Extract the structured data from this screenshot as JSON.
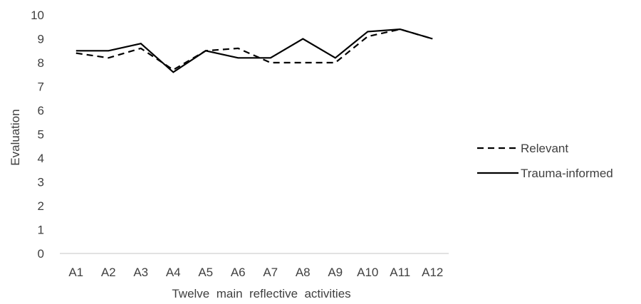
{
  "chart_data": {
    "type": "line",
    "title": "",
    "xlabel": "Twelve  main  reflective  activities",
    "ylabel": "Evaluation",
    "categories": [
      "A1",
      "A2",
      "A3",
      "A4",
      "A5",
      "A6",
      "A7",
      "A8",
      "A9",
      "A10",
      "A11",
      "A12"
    ],
    "ylim": [
      0,
      10
    ],
    "yticks": [
      0,
      1,
      2,
      3,
      4,
      5,
      6,
      7,
      8,
      9,
      10
    ],
    "grid": false,
    "legend_position": "right",
    "series": [
      {
        "name": "Relevant",
        "style": "dashed",
        "color": "#000000",
        "values": [
          8.4,
          8.2,
          8.6,
          7.7,
          8.5,
          8.6,
          8.0,
          8.0,
          8.0,
          9.1,
          9.4,
          9.0
        ]
      },
      {
        "name": "Trauma-informed",
        "style": "solid",
        "color": "#000000",
        "values": [
          8.5,
          8.5,
          8.8,
          7.6,
          8.5,
          8.2,
          8.2,
          9.0,
          8.2,
          9.3,
          9.4,
          9.0
        ]
      }
    ]
  }
}
